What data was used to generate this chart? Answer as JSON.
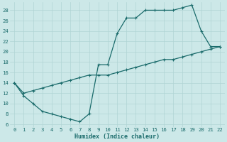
{
  "xlabel": "Humidex (Indice chaleur)",
  "bg_color": "#cce8e8",
  "grid_color": "#b0d4d4",
  "line_color": "#1a6b6b",
  "xlim": [
    -0.5,
    22.5
  ],
  "ylim": [
    5.5,
    29.5
  ],
  "xticks": [
    0,
    1,
    2,
    3,
    4,
    5,
    6,
    7,
    8,
    9,
    10,
    11,
    12,
    13,
    14,
    15,
    16,
    17,
    18,
    19,
    20,
    21,
    22
  ],
  "yticks": [
    6,
    8,
    10,
    12,
    14,
    16,
    18,
    20,
    22,
    24,
    26,
    28
  ],
  "line1_x": [
    0,
    1,
    2,
    3,
    4,
    5,
    6,
    7,
    8,
    9,
    10,
    11,
    12,
    13,
    14,
    15,
    16,
    17,
    18,
    19,
    20,
    21,
    22
  ],
  "line1_y": [
    14.0,
    11.5,
    10.0,
    8.5,
    8.0,
    7.5,
    7.0,
    6.5,
    8.0,
    17.5,
    17.5,
    23.5,
    26.5,
    26.5,
    28.0,
    28.0,
    28.0,
    28.0,
    28.5,
    29.0,
    24.0,
    21.0,
    21.0
  ],
  "line2_x": [
    0,
    1,
    2,
    3,
    4,
    5,
    6,
    7,
    8,
    9,
    10,
    11,
    12,
    13,
    14,
    15,
    16,
    17,
    18,
    19,
    20,
    21,
    22
  ],
  "line2_y": [
    14.0,
    12.0,
    12.5,
    13.0,
    13.5,
    14.0,
    14.5,
    15.0,
    15.5,
    15.5,
    15.5,
    16.0,
    16.5,
    17.0,
    17.5,
    18.0,
    18.5,
    18.5,
    19.0,
    19.5,
    20.0,
    20.5,
    21.0
  ]
}
